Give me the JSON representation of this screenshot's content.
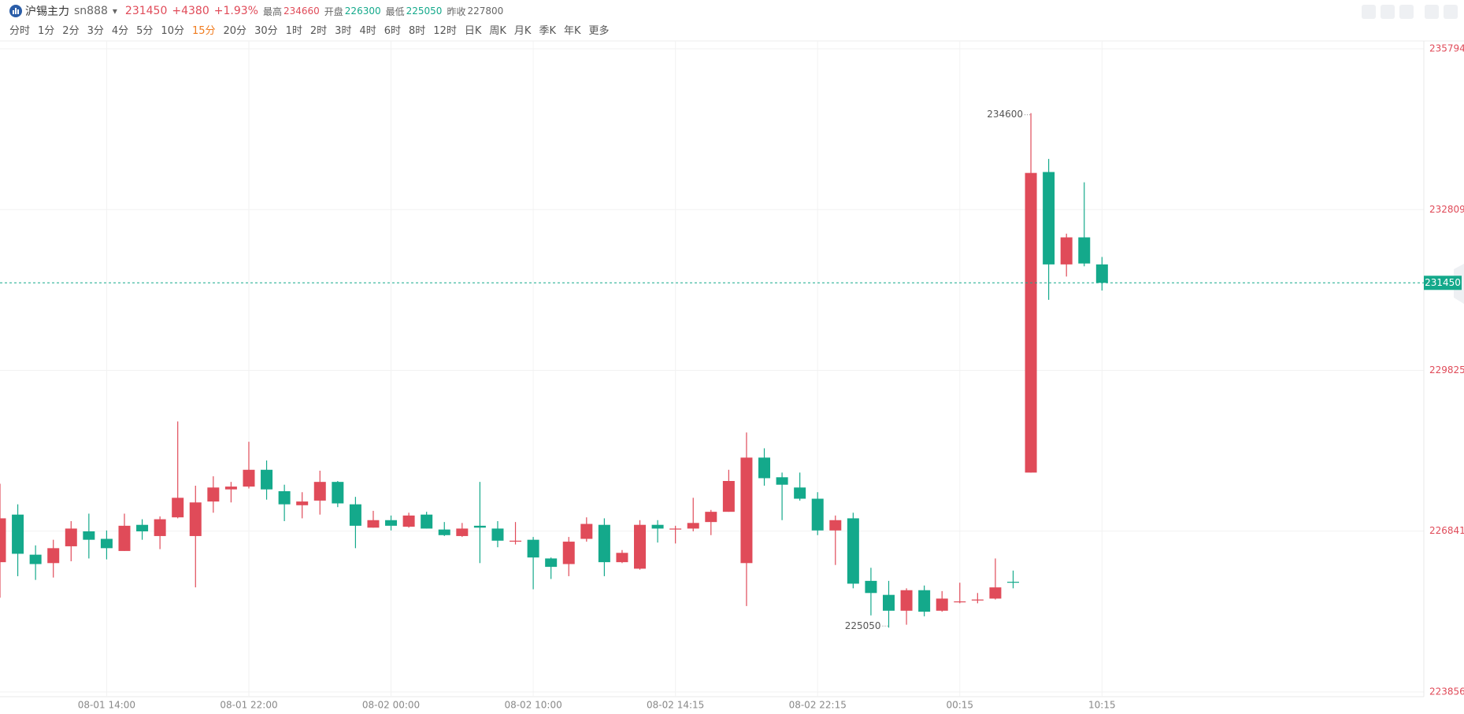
{
  "header": {
    "name": "沪锡主力",
    "code": "sn888",
    "price": 231450,
    "change": "+4380",
    "change_pct": "+1.93%",
    "stats": [
      {
        "label": "最高",
        "value": 234660
      },
      {
        "label": "开盘",
        "value": 226300
      },
      {
        "label": "最低",
        "value": 225050
      },
      {
        "label": "昨收",
        "value": 227800
      }
    ]
  },
  "periods": [
    "分时",
    "1分",
    "2分",
    "3分",
    "4分",
    "5分",
    "10分",
    "15分",
    "20分",
    "30分",
    "1时",
    "2时",
    "3时",
    "4时",
    "6时",
    "8时",
    "12时",
    "日K",
    "周K",
    "月K",
    "季K",
    "年K",
    "更多"
  ],
  "active_period": "15分",
  "chart_data": {
    "type": "candlestick",
    "up_color": "#e04b59",
    "down_color": "#14a98b",
    "categories": [
      null,
      null,
      null,
      null,
      null,
      null,
      "08-01 14:00",
      null,
      null,
      null,
      null,
      null,
      null,
      null,
      "08-01 22:00",
      null,
      null,
      null,
      null,
      null,
      null,
      null,
      "08-02 00:00",
      null,
      null,
      null,
      null,
      null,
      null,
      null,
      "08-02 10:00",
      null,
      null,
      null,
      null,
      null,
      null,
      null,
      "08-02 14:15",
      null,
      null,
      null,
      null,
      null,
      null,
      null,
      "08-02 22:15",
      null,
      null,
      null,
      null,
      null,
      null,
      null,
      "00:15",
      null,
      null,
      null,
      null,
      null,
      null,
      null,
      "10:15"
    ],
    "open": [
      226265,
      227148,
      226404,
      226248,
      226560,
      226837,
      226698,
      226473,
      226958,
      226750,
      227097,
      226750,
      227391,
      227616,
      227668,
      227980,
      227582,
      227322,
      227408,
      227755,
      227339,
      226906,
      227045,
      226923,
      227148,
      226871,
      226750,
      226941,
      226889,
      226646,
      226681,
      226334,
      226230,
      226698,
      226958,
      226265,
      226144,
      226958,
      226871,
      226889,
      227010,
      227200,
      226248,
      228206,
      227841,
      227651,
      227443,
      226854,
      227079,
      225918,
      225658,
      225364,
      225745,
      225364,
      225520,
      225554,
      225589,
      225901,
      227928,
      233507,
      231792,
      232294,
      231792
    ],
    "high": [
      227720,
      227339,
      226577,
      226681,
      227027,
      227166,
      226854,
      227166,
      227062,
      227114,
      228877,
      227685,
      227859,
      227755,
      228500,
      228153,
      227703,
      227564,
      227963,
      227772,
      227477,
      227218,
      227131,
      227183,
      227200,
      227010,
      226993,
      227755,
      227027,
      227010,
      226733,
      226352,
      226733,
      227097,
      227079,
      226490,
      227045,
      227045,
      226941,
      227460,
      227235,
      227980,
      228673,
      228379,
      227928,
      227928,
      227564,
      227131,
      227183,
      226161,
      225918,
      225780,
      225832,
      225728,
      225884,
      225693,
      226334,
      226109,
      234600,
      233750,
      232363,
      233316,
      231930
    ],
    "low": [
      225606,
      226005,
      225936,
      225980,
      226282,
      226334,
      226317,
      226473,
      226681,
      226507,
      227079,
      225797,
      227183,
      227374,
      227633,
      227426,
      227027,
      227079,
      227148,
      227287,
      226525,
      226906,
      226854,
      226906,
      226889,
      226750,
      226733,
      226248,
      226542,
      226594,
      225762,
      225953,
      226005,
      226646,
      226005,
      226248,
      226126,
      226629,
      226612,
      226837,
      226767,
      227200,
      225450,
      227685,
      227045,
      227408,
      226767,
      226213,
      225780,
      225277,
      225050,
      225104,
      225260,
      225346,
      225502,
      225502,
      225572,
      225780,
      227928,
      231134,
      231567,
      231757,
      231307
    ],
    "close": [
      227079,
      226421,
      226230,
      226525,
      226889,
      226681,
      226525,
      226941,
      226837,
      227062,
      227460,
      227374,
      227651,
      227668,
      227980,
      227616,
      227339,
      227391,
      227755,
      227356,
      226941,
      227045,
      226941,
      227131,
      226889,
      226767,
      226889,
      226906,
      226664,
      226664,
      226352,
      226178,
      226646,
      226975,
      226265,
      226438,
      226958,
      226889,
      226889,
      226993,
      227200,
      227772,
      228206,
      227824,
      227703,
      227443,
      226854,
      227045,
      225866,
      225693,
      225364,
      225745,
      225346,
      225589,
      225537,
      225572,
      225797,
      225884,
      233490,
      231792,
      232294,
      231809,
      231450
    ],
    "ylim": [
      223856,
      235794
    ],
    "yticks": [
      235794,
      232809,
      229825,
      226841,
      223856
    ],
    "grid": true
  }
}
